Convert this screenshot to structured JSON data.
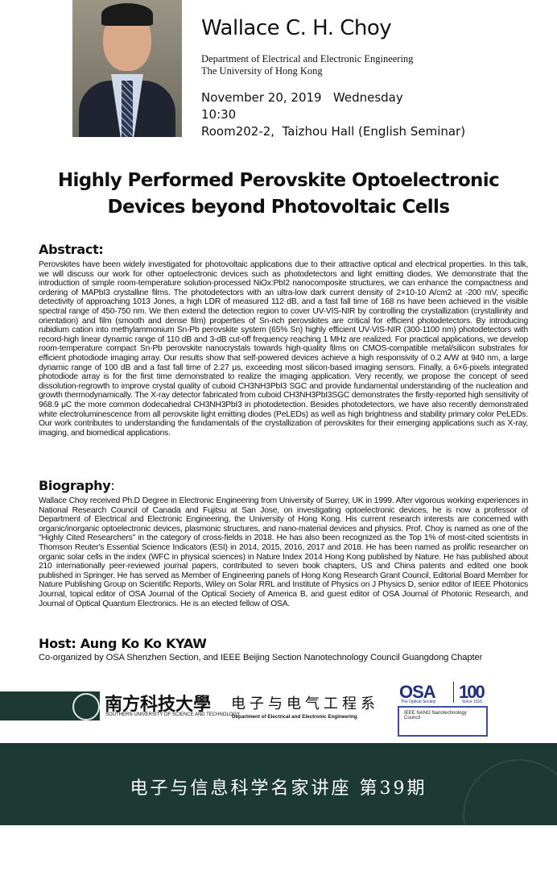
{
  "speaker": {
    "name": "Wallace C. H. Choy",
    "department": "Department of Electrical and Electronic Engineering",
    "university": "The University of Hong Kong"
  },
  "event": {
    "date": "November 20, 2019   Wednesday",
    "time": "10:30",
    "venue": "Room202-2,  Taizhou Hall (English Seminar)"
  },
  "title": {
    "line1": "Highly Performed Perovskite Optoelectronic",
    "line2": "Devices beyond Photovoltaic Cells"
  },
  "abstract": {
    "heading": "Abstract:",
    "text": "Perovskites have been widely investigated for photovoltaic applications due to their attractive optical and electrical properties. In this talk, we will discuss our work for other optoelectronic devices such as photodetectors and light emitting diodes. We demonstrate that the introduction of simple room-temperature solution-processed NiOx:PbI2 nanocomposite structures, we can enhance the compactness and ordering of MAPbI3 crystalline films. The photodetectors with an ultra-low dark current density of 2×10-10 A/cm2 at -200 mV, specific detectivity of approaching 1013 Jones, a high LDR of measured 112 dB, and a fast fall time of 168 ns have been achieved in the visible spectral range of 450-750 nm. We then extend the detection region to cover UV-VIS-NIR by controlling the crystallization (crystallinity and orientation) and film (smooth and dense film) properties of Sn-rich perovskites are critical for efficient photodetectors. By introducing rubidium cation into methylammonium Sn-Pb perovskite system (65% Sn) highly efficient UV-VIS-NIR (300-1100 nm) photodetectors with record-high linear dynamic range of 110 dB and 3-dB cut-off frequency reaching 1 MHz are realized. For practical applications, we develop room-temperature compact Sn-Pb perovskite nanocrystals towards high-quality films on CMOS-compatible metal/silicon substrates for efficient photodiode imaging array. Our results show that self-powered devices achieve a high responsivity of 0.2 A/W at 940 nm, a large dynamic range of 100 dB and a fast fall time of 2.27 μs, exceeding most silicon-based imaging sensors. Finally, a 6×6-pixels integrated photodiode array is for the first time demonstrated to realize the imaging application. Very recently, we propose the concept of seed dissolution-regrowth to improve crystal quality of cuboid CH3NH3PbI3 SGC and provide fundamental understanding of the nucleation and growth thermodynamically. The X-ray detector fabricated from cuboid CH3NH3PbI3SGC demonstrates the firstly-reported high sensitivity of 968.9 μC the more common dodecahedral CH3NH3PbI3 in photodetection. Besides photodetectors, we have also recently demonstrated white electroluminescence from all perovskite light emitting diodes (PeLEDs) as well as high brightness and stability primary color PeLEDs. Our work contributes to understanding the fundamentals of the crystallization of perovskites for their emerging applications such as X-ray, imaging, and biomedical applications."
  },
  "biography": {
    "heading": "Biography",
    "colon": ":",
    "text": "Wallace Choy received Ph.D Degree in Electronic Engineering from University of Surrey, UK in 1999. After vigorous working experiences in National Research Council of Canada and Fujitsu at San Jose, on investigating optoelectronic devices, he is now a professor of Department of Electrical and Electronic Engineering, the University of Hong Kong. His current research interests are concerned with organic/inorganic optoelectronic devices, plasmonic structures, and nano-material devices and physics. Prof. Choy is named as one of the \"Highly Cited Researchers\" in the category of cross-fields in 2018. He has also been recognized as the Top 1% of most-cited scientists in Thomson Reuter's Essential Science Indicators (ESI) in 2014, 2015, 2016, 2017 and 2018. He has been named as prolific researcher on organic solar cells in the index (WFC in physical sciences) in Nature Index 2014 Hong Kong published by Nature. He has published about 210 internationally peer-reviewed journal papers, contributed to seven book chapters, US and China patents and edited one book published in Springer. He has served as Member of Engineering panels of Hong Kong Research Grant Council, Editorial Board Member for Nature Publishing Group on Scientific Reports, Wiley on Solar RRL and Institute of Physics on J Physics D, senior editor of IEEE Photonics Journal, topical editor of OSA Journal of the Optical Society of America B, and guest editor of OSA Journal of Photonic Research, and Journal of Optical Quantum Electronics. He is an elected fellow of OSA."
  },
  "host": "Host: Aung Ko Ko KYAW",
  "coorganizers": "Co-organized by OSA Shenzhen Section, and IEEE Beijing Section Nanotechnology Council Guangdong Chapter",
  "logos": {
    "sustech_cn": "南方科技大學",
    "sustech_en": "SOUTHERN UNIVERSITY OF SCIENCE AND TECHNOLOGY",
    "dept_cn": "电子与电气工程系",
    "dept_en": "Department of Electrical and Electronic Engineering",
    "osa": "OSA",
    "osa_sub": "The Optical Society",
    "osa_100": "100",
    "osa_since": "Since 1916",
    "ieee_nano": "IEEE NANO  Nanotechnology Council"
  },
  "footer": {
    "series": "电子与信息科学名家讲座 第39期"
  },
  "colors": {
    "dark_green": "#1c3a32",
    "osa_blue": "#1f2f86"
  }
}
